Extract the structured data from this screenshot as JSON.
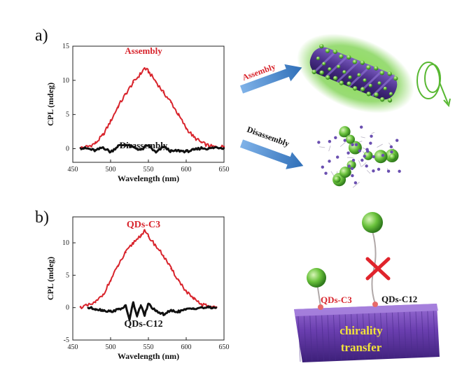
{
  "panel_labels": {
    "a": "a)",
    "b": "b)"
  },
  "colors": {
    "assembly_red": "#d8242c",
    "trace_black": "#111111",
    "arrow_blue": "#3c7fc4",
    "green_halo": "#6dcc3a",
    "rod_purple": "#5a3d9c",
    "sphere_green": "#7ed35a",
    "cross_red": "#e0242c",
    "label_yellow": "#f2e23a"
  },
  "chart_data": [
    {
      "type": "line",
      "title": "",
      "xlabel": "Wavelength (nm)",
      "ylabel": "CPL (mdeg)",
      "xlim": [
        450,
        650
      ],
      "ylim": [
        -2,
        15
      ],
      "xticks": [
        450,
        500,
        550,
        600,
        650
      ],
      "yticks": [
        0,
        5,
        10,
        15
      ],
      "series": [
        {
          "name": "Assembly",
          "color": "#d8242c",
          "x": [
            460,
            470,
            480,
            490,
            500,
            510,
            520,
            530,
            540,
            545,
            550,
            560,
            570,
            580,
            590,
            600,
            610,
            620,
            630,
            640,
            650
          ],
          "y": [
            0.1,
            0.3,
            0.8,
            2.0,
            4.0,
            6.2,
            8.0,
            9.7,
            11.0,
            11.8,
            11.3,
            9.8,
            8.2,
            6.8,
            4.9,
            3.0,
            1.7,
            0.9,
            0.4,
            0.2,
            0.3
          ]
        },
        {
          "name": "Disassembly",
          "color": "#111111",
          "x": [
            460,
            470,
            480,
            490,
            500,
            510,
            520,
            530,
            540,
            550,
            560,
            570,
            580,
            590,
            600,
            610,
            620,
            630,
            640,
            650
          ],
          "y": [
            0.1,
            0.0,
            -0.3,
            0.2,
            -0.5,
            0.4,
            0.6,
            0.2,
            -0.2,
            0.5,
            -0.6,
            0.3,
            -0.4,
            -0.3,
            -0.4,
            -0.2,
            0.1,
            0.0,
            0.2,
            0.1
          ]
        }
      ]
    },
    {
      "type": "line",
      "title": "",
      "xlabel": "Wavelength (nm)",
      "ylabel": "CPL (mdeg)",
      "xlim": [
        450,
        650
      ],
      "ylim": [
        -5,
        14
      ],
      "xticks": [
        450,
        500,
        550,
        600,
        650
      ],
      "yticks": [
        -5,
        0,
        5,
        10
      ],
      "series": [
        {
          "name": "QDs-C3",
          "color": "#d8242c",
          "x": [
            460,
            470,
            480,
            490,
            500,
            510,
            520,
            530,
            540,
            545,
            550,
            560,
            570,
            580,
            590,
            600,
            610,
            620,
            630,
            640
          ],
          "y": [
            0.1,
            0.3,
            0.8,
            2.0,
            4.2,
            6.5,
            8.5,
            10.0,
            11.2,
            11.8,
            11.0,
            9.5,
            8.0,
            6.0,
            4.2,
            2.5,
            1.3,
            0.5,
            0.2,
            0.1
          ]
        },
        {
          "name": "QDs-C12",
          "color": "#111111",
          "x": [
            470,
            480,
            490,
            500,
            510,
            520,
            525,
            530,
            535,
            540,
            545,
            550,
            560,
            570,
            580,
            590,
            600,
            610,
            620,
            630,
            640
          ],
          "y": [
            0.0,
            -0.2,
            -0.4,
            -0.6,
            -0.3,
            0.2,
            -1.8,
            0.8,
            -1.4,
            0.4,
            -1.2,
            0.6,
            -0.6,
            -1.0,
            -0.5,
            -0.6,
            -0.3,
            -0.1,
            0.0,
            0.0,
            0.0
          ]
        }
      ]
    }
  ],
  "panel_a": {
    "label_assembly": "Assembly",
    "label_disassembly": "Disassembly",
    "arrow_assembly": "Assembly",
    "arrow_disassembly": "Disassembly"
  },
  "panel_b": {
    "label_qds_c3": "QDs-C3",
    "label_qds_c12": "QDs-C12",
    "ligand_c3": "QDs-C3",
    "ligand_c12": "QDs-C12",
    "chirality_line1": "chirality",
    "chirality_line2": "transfer"
  }
}
